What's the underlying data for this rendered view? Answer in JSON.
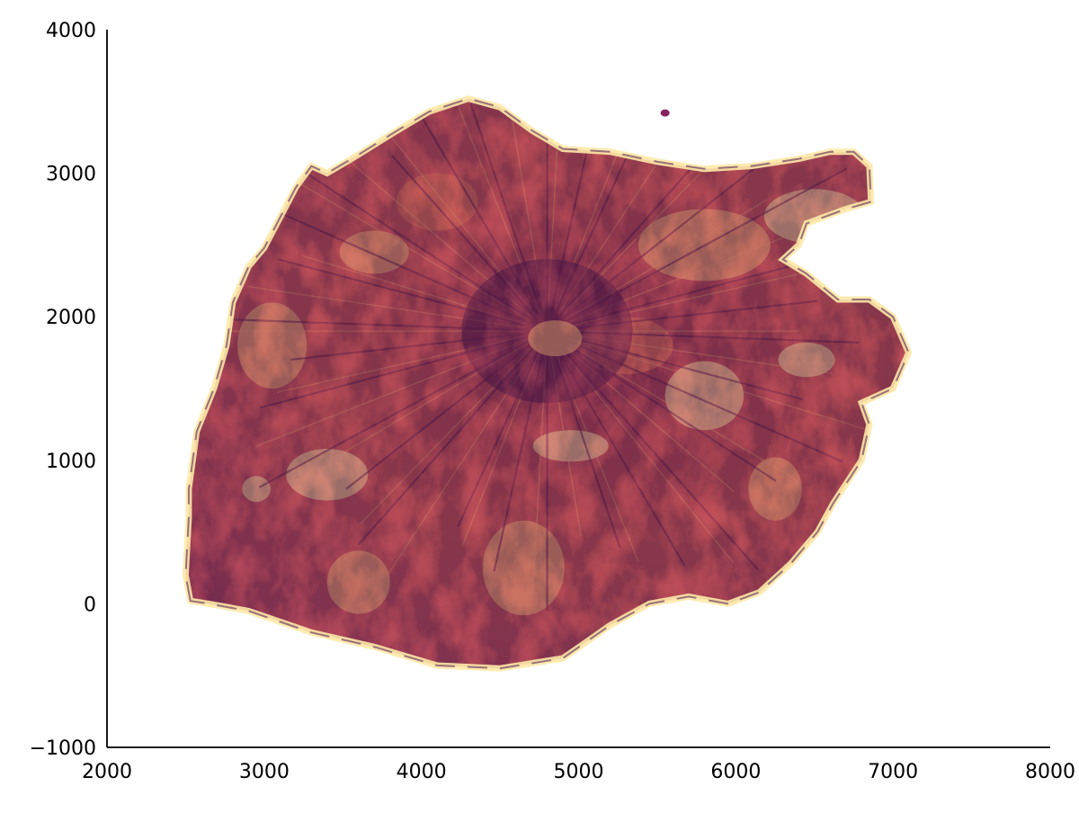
{
  "chart_data": {
    "type": "heatmap",
    "title": "",
    "xlabel": "",
    "ylabel": "",
    "xlim": [
      2000,
      8000
    ],
    "ylim": [
      -1000,
      4000
    ],
    "xticks": [
      2000,
      3000,
      4000,
      5000,
      6000,
      7000,
      8000
    ],
    "yticks": [
      -1000,
      0,
      1000,
      2000,
      3000,
      4000
    ],
    "xtick_labels": [
      "2000",
      "3000",
      "4000",
      "5000",
      "6000",
      "7000",
      "8000"
    ],
    "ytick_labels": [
      "−1000",
      "0",
      "1000",
      "2000",
      "3000",
      "4000"
    ],
    "colormap": [
      "#fde9a9",
      "#f9b97c",
      "#e8795e",
      "#c43f58",
      "#8a2361",
      "#4a1450",
      "#1a0a2e"
    ],
    "grid": false,
    "legend": false,
    "spines": [
      "left",
      "bottom"
    ],
    "description_of_field": "shaded-relief raster of an island (slope-like intensity) on a light-to-dark magma-style colormap",
    "island_outline": [
      [
        2530,
        20
      ],
      [
        2500,
        200
      ],
      [
        2520,
        600
      ],
      [
        2520,
        800
      ],
      [
        2570,
        1200
      ],
      [
        2680,
        1500
      ],
      [
        2760,
        1800
      ],
      [
        2800,
        2100
      ],
      [
        2900,
        2350
      ],
      [
        3000,
        2480
      ],
      [
        3200,
        2900
      ],
      [
        3300,
        3050
      ],
      [
        3400,
        3000
      ],
      [
        3600,
        3130
      ],
      [
        3850,
        3300
      ],
      [
        4050,
        3430
      ],
      [
        4300,
        3520
      ],
      [
        4500,
        3460
      ],
      [
        4700,
        3300
      ],
      [
        4900,
        3170
      ],
      [
        5200,
        3150
      ],
      [
        5500,
        3080
      ],
      [
        5800,
        3030
      ],
      [
        6100,
        3050
      ],
      [
        6400,
        3100
      ],
      [
        6600,
        3150
      ],
      [
        6750,
        3150
      ],
      [
        6850,
        3050
      ],
      [
        6860,
        2800
      ],
      [
        6700,
        2750
      ],
      [
        6450,
        2650
      ],
      [
        6400,
        2500
      ],
      [
        6300,
        2400
      ],
      [
        6450,
        2300
      ],
      [
        6650,
        2120
      ],
      [
        6850,
        2120
      ],
      [
        7000,
        2000
      ],
      [
        7100,
        1750
      ],
      [
        7000,
        1500
      ],
      [
        6800,
        1400
      ],
      [
        6850,
        1250
      ],
      [
        6800,
        1000
      ],
      [
        6620,
        700
      ],
      [
        6520,
        500
      ],
      [
        6350,
        280
      ],
      [
        6150,
        80
      ],
      [
        5950,
        0
      ],
      [
        5700,
        50
      ],
      [
        5450,
        0
      ],
      [
        5200,
        -150
      ],
      [
        4900,
        -380
      ],
      [
        4500,
        -450
      ],
      [
        4100,
        -430
      ],
      [
        3700,
        -300
      ],
      [
        3300,
        -200
      ],
      [
        2900,
        -50
      ],
      [
        2650,
        0
      ]
    ]
  }
}
